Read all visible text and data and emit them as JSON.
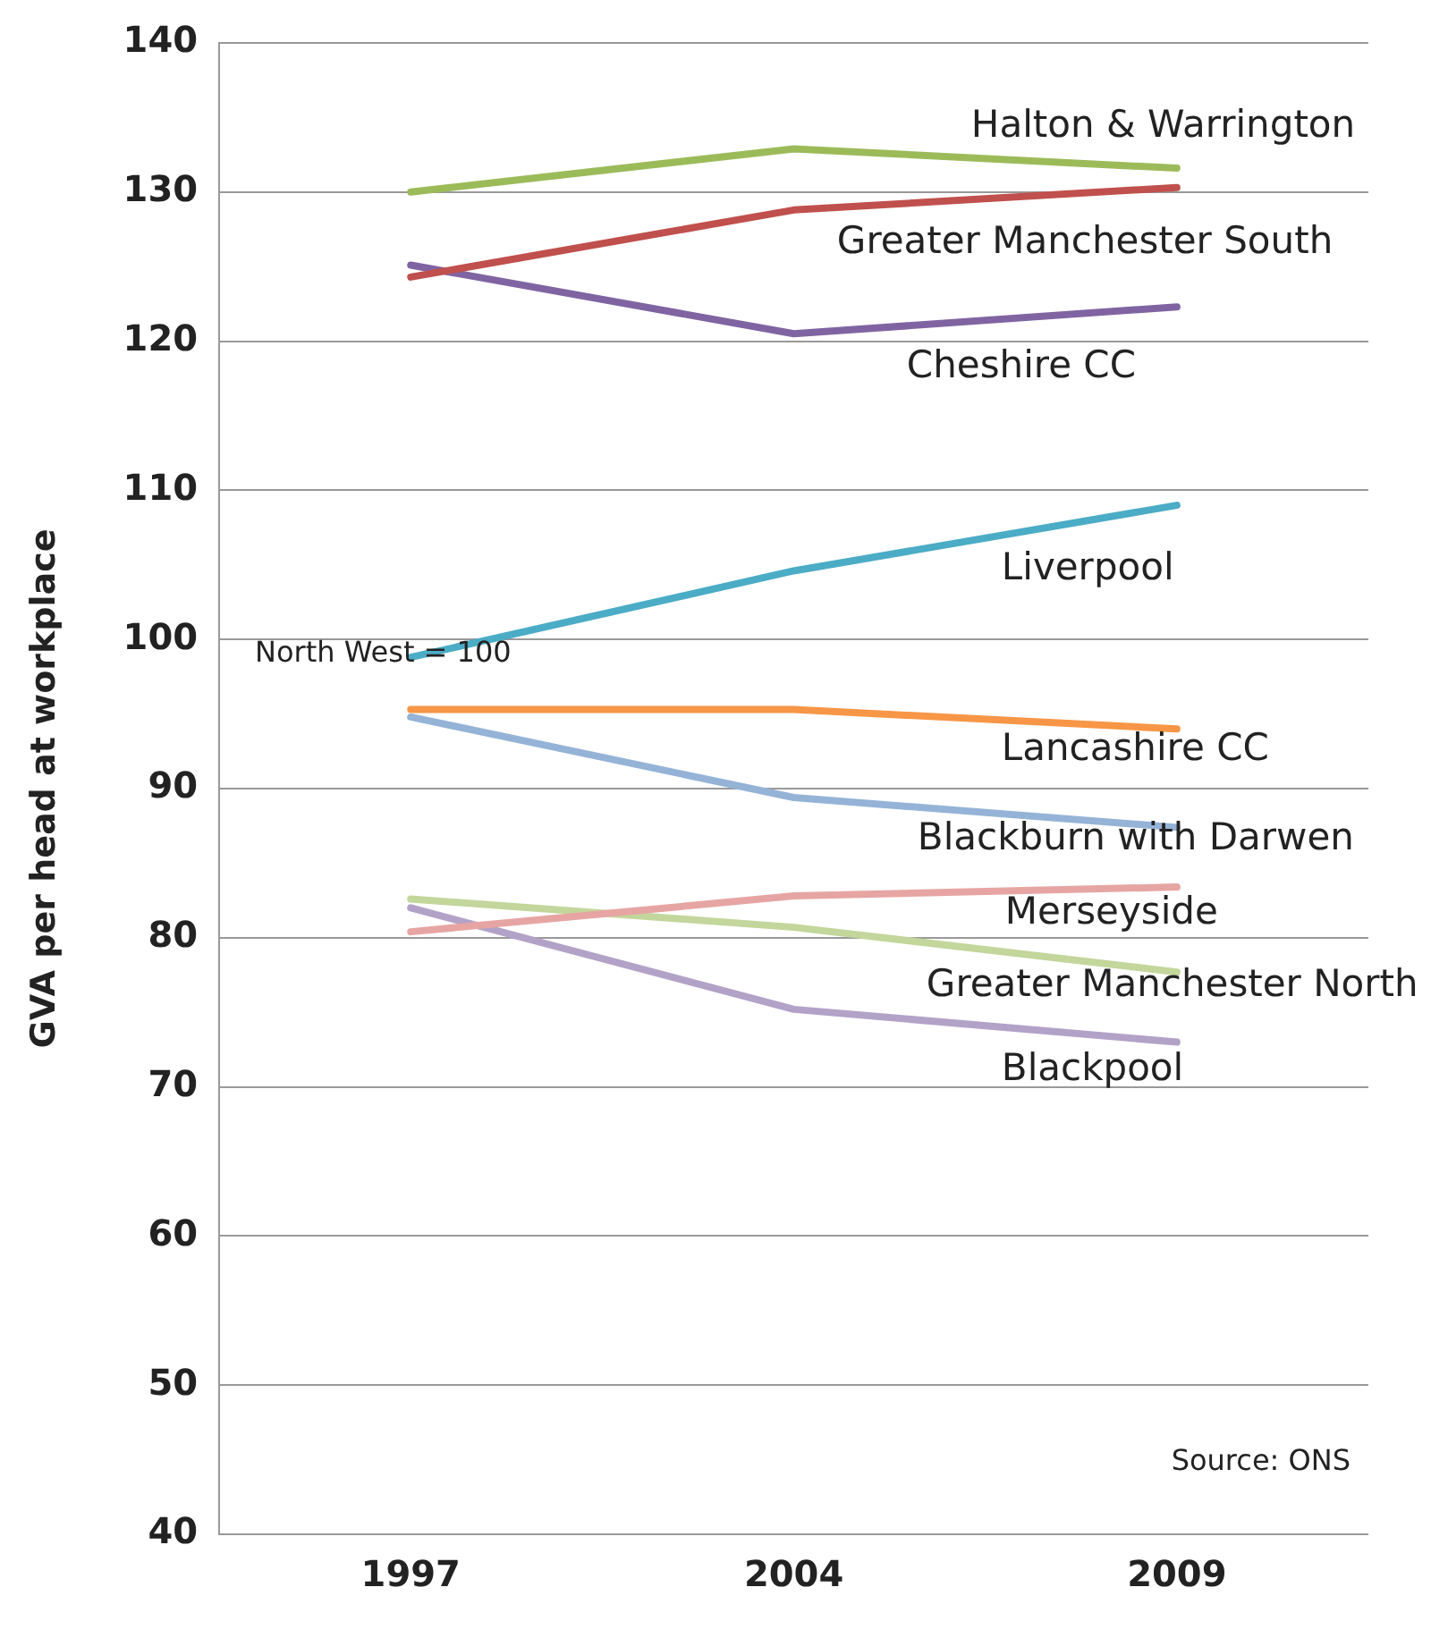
{
  "chart_data": {
    "type": "line",
    "ylabel": "GVA per head at workplace",
    "categories": [
      "1997",
      "2004",
      "2009"
    ],
    "series": [
      {
        "name": "Halton & Warrington",
        "color": "#9bbb59",
        "values": [
          130,
          132.9,
          131.6
        ]
      },
      {
        "name": "Greater Manchester South",
        "color": "#c0504d",
        "values": [
          124.3,
          128.8,
          130.3
        ]
      },
      {
        "name": "Cheshire CC",
        "color": "#8064a2",
        "values": [
          125.1,
          120.5,
          122.3
        ]
      },
      {
        "name": "Liverpool",
        "color": "#4bacc6",
        "values": [
          98.8,
          104.6,
          109
        ]
      },
      {
        "name": "Lancashire CC",
        "color": "#f79646",
        "values": [
          95.3,
          95.3,
          94
        ]
      },
      {
        "name": "Blackburn with Darwen",
        "color": "#95b3d7",
        "values": [
          94.8,
          89.4,
          87.4
        ]
      },
      {
        "name": "Merseyside",
        "color": "#e6a5a3",
        "values": [
          80.4,
          82.8,
          83.4
        ]
      },
      {
        "name": "Greater Manchester North",
        "color": "#c3d69b",
        "values": [
          82.6,
          80.7,
          77.7
        ]
      },
      {
        "name": "Blackpool",
        "color": "#b3a2c7",
        "values": [
          82,
          75.2,
          73
        ]
      }
    ],
    "ylim": [
      40,
      140
    ],
    "yticks": [
      40,
      50,
      60,
      70,
      80,
      90,
      100,
      110,
      120,
      130,
      140
    ],
    "grid": "y",
    "legend": false,
    "marker": "none",
    "line_style": "solid",
    "annotations": [
      "North West = 100",
      "Source: ONS"
    ]
  }
}
